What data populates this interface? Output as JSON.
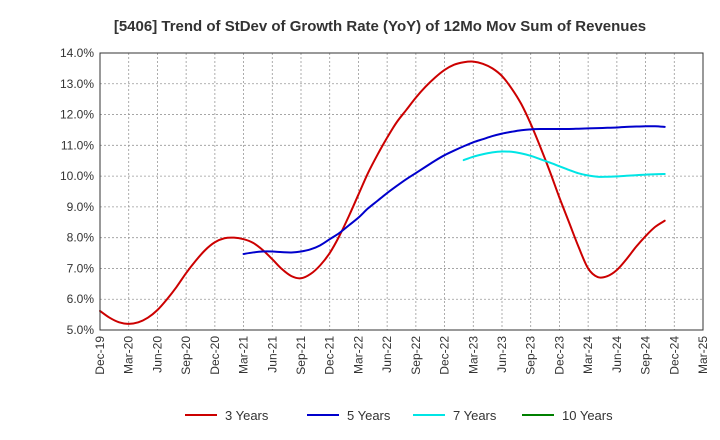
{
  "chart_data": {
    "type": "line",
    "title": "[5406]  Trend of StDev of Growth Rate (YoY) of 12Mo Mov Sum of Revenues",
    "xlabel": "",
    "ylabel": "",
    "ylim": [
      5.0,
      14.0
    ],
    "ytick_values": [
      5,
      6,
      7,
      8,
      9,
      10,
      11,
      12,
      13,
      14
    ],
    "ytick_labels": [
      "5.0%",
      "6.0%",
      "7.0%",
      "8.0%",
      "9.0%",
      "10.0%",
      "11.0%",
      "12.0%",
      "13.0%",
      "14.0%"
    ],
    "xtick_labels": [
      "Dec-19",
      "Mar-20",
      "Jun-20",
      "Sep-20",
      "Dec-20",
      "Mar-21",
      "Jun-21",
      "Sep-21",
      "Dec-21",
      "Mar-22",
      "Jun-22",
      "Sep-22",
      "Dec-22",
      "Mar-23",
      "Jun-23",
      "Sep-23",
      "Dec-23",
      "Mar-24",
      "Jun-24",
      "Sep-24",
      "Dec-24",
      "Mar-25"
    ],
    "grid": true,
    "legend_position": "bottom",
    "series": [
      {
        "name": "3 Years",
        "color": "#cc0000",
        "values": [
          5.62,
          5.4,
          5.25,
          5.2,
          5.25,
          5.4,
          5.65,
          6.0,
          6.4,
          6.85,
          7.25,
          7.6,
          7.85,
          7.98,
          8.0,
          7.95,
          7.83,
          7.6,
          7.3,
          6.98,
          6.75,
          6.68,
          6.82,
          7.1,
          7.5,
          8.05,
          8.7,
          9.4,
          10.1,
          10.7,
          11.25,
          11.75,
          12.15,
          12.55,
          12.9,
          13.2,
          13.45,
          13.62,
          13.7,
          13.72,
          13.65,
          13.5,
          13.25,
          12.85,
          12.35,
          11.7,
          10.95,
          10.15,
          9.3,
          8.5,
          7.7,
          7.0,
          6.72,
          6.75,
          6.95,
          7.3,
          7.7,
          8.05,
          8.35,
          8.55
        ]
      },
      {
        "name": "5 Years",
        "color": "#0000cc",
        "values": [
          null,
          null,
          null,
          null,
          null,
          null,
          null,
          null,
          null,
          null,
          null,
          null,
          null,
          null,
          null,
          7.47,
          7.52,
          7.55,
          7.55,
          7.53,
          7.52,
          7.55,
          7.62,
          7.75,
          7.95,
          8.15,
          8.4,
          8.65,
          8.95,
          9.2,
          9.45,
          9.68,
          9.9,
          10.1,
          10.3,
          10.5,
          10.68,
          10.83,
          10.97,
          11.1,
          11.2,
          11.3,
          11.38,
          11.44,
          11.49,
          11.52,
          11.53,
          11.53,
          11.53,
          11.53,
          11.54,
          11.55,
          11.56,
          11.57,
          11.58,
          11.6,
          11.61,
          11.62,
          11.62,
          11.6
        ]
      },
      {
        "name": "7 Years",
        "color": "#00e5e5",
        "values": [
          null,
          null,
          null,
          null,
          null,
          null,
          null,
          null,
          null,
          null,
          null,
          null,
          null,
          null,
          null,
          null,
          null,
          null,
          null,
          null,
          null,
          null,
          null,
          null,
          null,
          null,
          null,
          null,
          null,
          null,
          null,
          null,
          null,
          null,
          null,
          null,
          null,
          null,
          10.52,
          10.63,
          10.71,
          10.77,
          10.8,
          10.79,
          10.74,
          10.66,
          10.55,
          10.44,
          10.32,
          10.2,
          10.09,
          10.02,
          9.98,
          9.98,
          9.99,
          10.01,
          10.03,
          10.05,
          10.06,
          10.07
        ]
      },
      {
        "name": "10 Years",
        "color": "#008000",
        "values": []
      }
    ]
  }
}
